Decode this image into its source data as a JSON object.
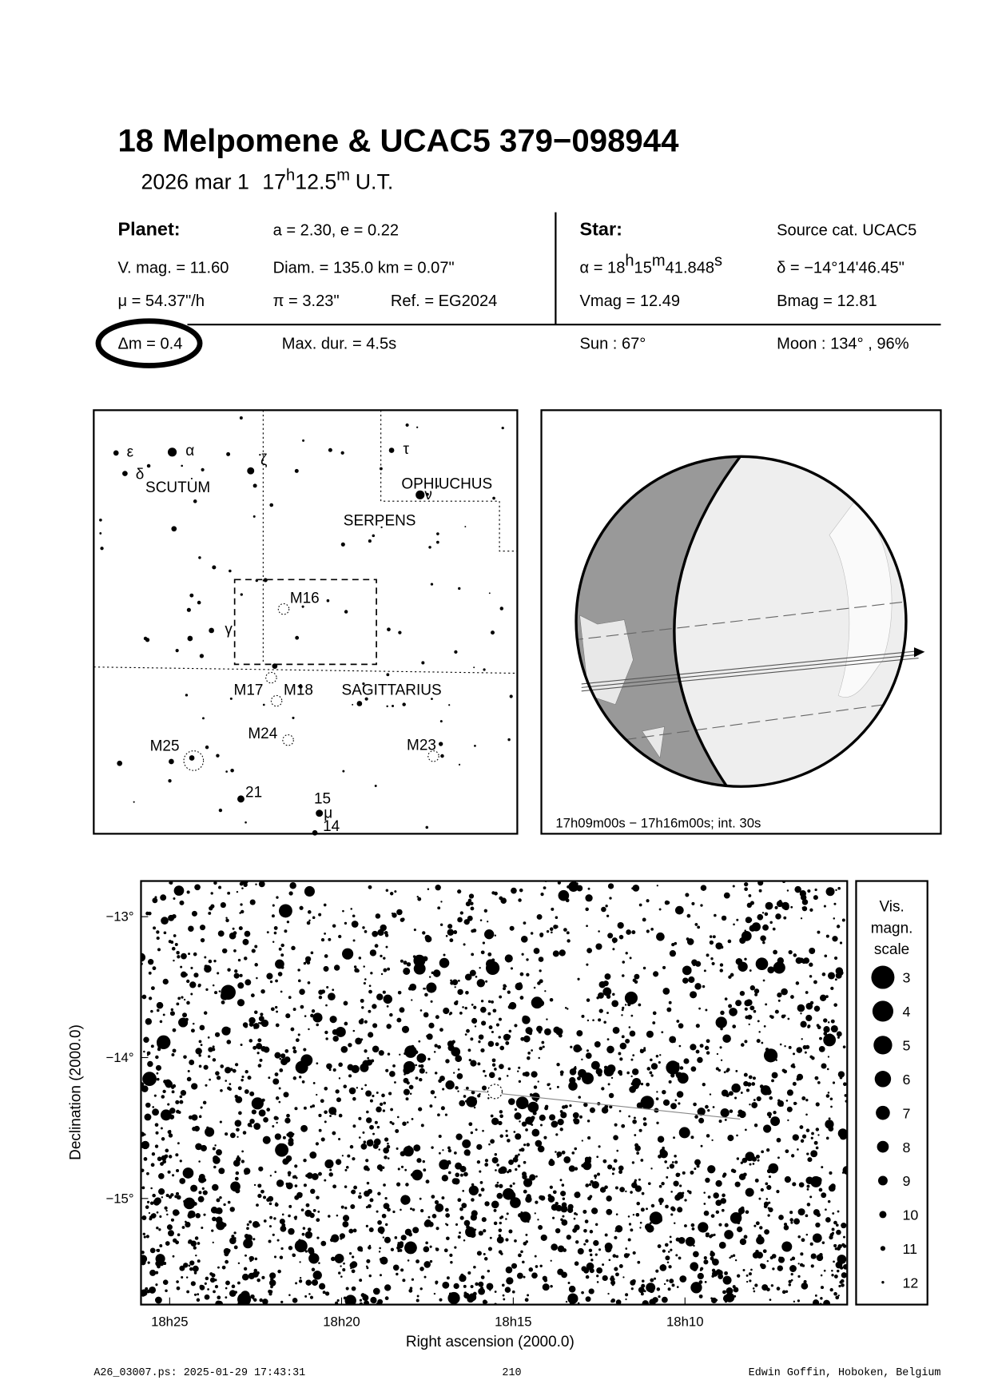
{
  "header": {
    "title": "18 Melpomene  &  UCAC5 379−098944",
    "date": "2026 mar  1",
    "time_parts": [
      "17",
      "h",
      "12.5",
      "m"
    ],
    "time_suffix": "U.T."
  },
  "planet": {
    "heading": "Planet:",
    "orbit": "a = 2.30, e = 0.22",
    "vmag": "V. mag. = 11.60",
    "diam": "Diam. = 135.0 km = 0.07\"",
    "motion": "μ =  54.37\"/h",
    "parallax": "π =  3.23\"",
    "ref": "Ref. = EG2024",
    "dmag": "Δm = 0.4",
    "maxdur": "Max. dur. = 4.5s"
  },
  "star": {
    "heading": "Star:",
    "source": "Source cat.  UCAC5",
    "ra_label": "α =",
    "ra_parts": [
      "18",
      "h",
      "15",
      "m",
      "41.848",
      "s"
    ],
    "dec": "δ = −14°14'46.45\"",
    "vmag": "Vmag = 12.49",
    "bmag": "Bmag = 12.81",
    "sun": "Sun :  67°",
    "moon": "Moon : 134° , 96%"
  },
  "finder": {
    "labels": [
      "ε",
      "α",
      "δ",
      "SCUTUM",
      "ζ",
      "τ",
      "OPHIUCHUS",
      "ν",
      "SERPENS",
      "M16",
      "γ",
      "M17",
      "M18",
      "SAGITTARIUS",
      "M24",
      "M25",
      "M23",
      "21",
      "15",
      "μ",
      "14"
    ]
  },
  "globe": {
    "caption": "17h09m00s − 17h16m00s; int. 30s"
  },
  "starchart": {
    "xlabel": "Right ascension (2000.0)",
    "ylabel": "Declination (2000.0)",
    "xlim": [
      18.4306,
      18.088
    ],
    "ylim": [
      -15.753,
      -12.747
    ],
    "xticks": [
      {
        "value": 18.4167,
        "label": "18h25"
      },
      {
        "value": 18.3333,
        "label": "18h20"
      },
      {
        "value": 18.25,
        "label": "18h15"
      },
      {
        "value": 18.1667,
        "label": "18h10"
      }
    ],
    "yticks": [
      {
        "value": -13,
        "label": "−13°"
      },
      {
        "value": -14,
        "label": "−14°"
      },
      {
        "value": -15,
        "label": "−15°"
      }
    ],
    "legend_title": [
      "Vis.",
      "magn.",
      "scale"
    ],
    "legend_mags": [
      3,
      4,
      5,
      6,
      7,
      8,
      9,
      10,
      11,
      12
    ]
  },
  "footer": {
    "file": "A26_03007.ps: 2025-01-29 17:43:31",
    "page": "210",
    "author": "Edwin Goffin, Hoboken, Belgium"
  }
}
